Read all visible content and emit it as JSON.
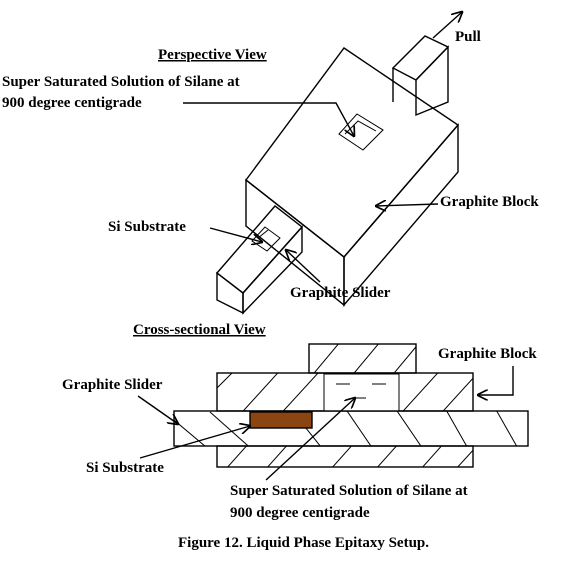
{
  "perspective": {
    "heading": "Perspective View",
    "pull_label": "Pull",
    "solution_label_line1": "Super Saturated Solution of Silane at",
    "solution_label_line2": "900 degree centigrade",
    "substrate_label": "Si Substrate",
    "block_label": "Graphite Block",
    "slider_label": "Graphite Slider"
  },
  "cross_section": {
    "heading": "Cross-sectional View",
    "block_label": "Graphite Block",
    "slider_label": "Graphite Slider",
    "substrate_label": "Si Substrate",
    "solution_label_line1": "Super Saturated Solution of Silane at",
    "solution_label_line2": "900 degree  centigrade"
  },
  "caption": "Figure 12. Liquid Phase Epitaxy Setup.",
  "colors": {
    "substrate": "#8b4513",
    "line": "#000000",
    "background": "#ffffff"
  }
}
